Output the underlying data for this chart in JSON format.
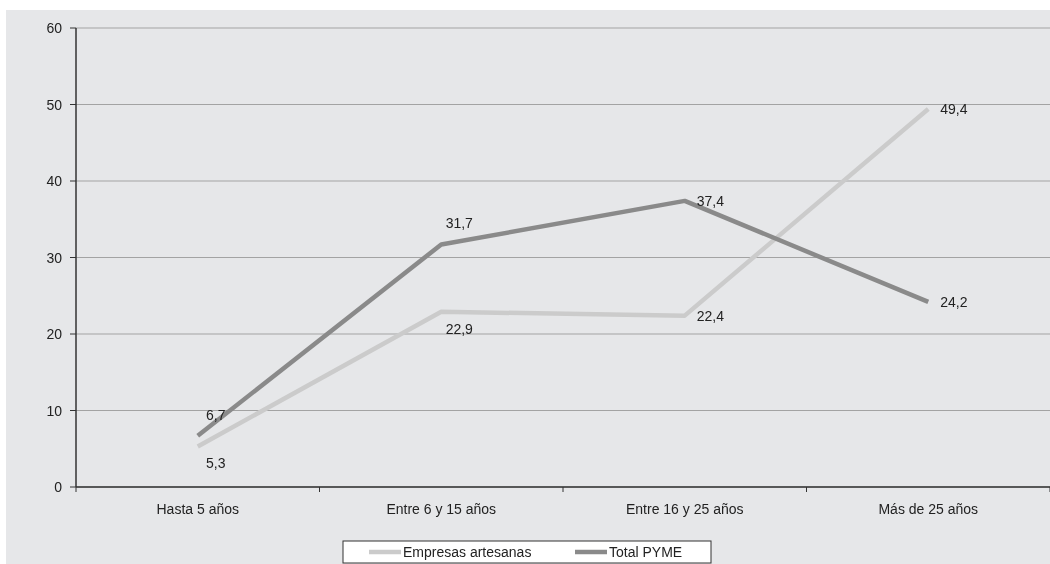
{
  "chart_data": {
    "type": "line",
    "categories": [
      "Hasta 5 años",
      "Entre 6 y 15 años",
      "Entre 16 y 25 años",
      "Más de 25 años"
    ],
    "series": [
      {
        "name": "Empresas artesanas",
        "color": "#cbcbcb",
        "values": [
          5.3,
          22.9,
          22.4,
          49.4
        ],
        "value_labels": [
          "5,3",
          "22,9",
          "22,4",
          "49,4"
        ]
      },
      {
        "name": "Total PYME",
        "color": "#8a8a8a",
        "values": [
          6.7,
          31.7,
          37.4,
          24.2
        ],
        "value_labels": [
          "6,7",
          "31,7",
          "37,4",
          "24,2"
        ]
      }
    ],
    "ylim": [
      0,
      60
    ],
    "yticks": [
      0,
      10,
      20,
      30,
      40,
      50,
      60
    ],
    "grid": "y",
    "legend": "bottom",
    "marker": "none",
    "line_style": "solid"
  }
}
